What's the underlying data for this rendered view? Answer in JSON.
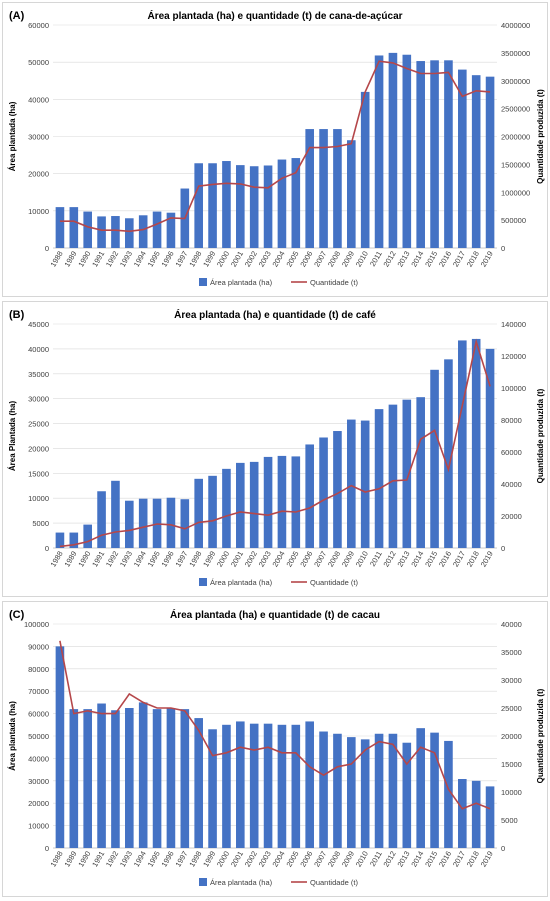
{
  "colors": {
    "bar": "#4472c4",
    "line": "#b5474a",
    "grid": "#d9d9d9",
    "axis": "#bfbfbf"
  },
  "chart_data": [
    {
      "type": "bar",
      "label": "(A)",
      "title": "Área plantada (ha) e quantidade (t) de cana-de-açúcar",
      "ylabel": "Área plantada (ha)",
      "y2label": "Quantidade produzida (t)",
      "ylim": [
        0,
        60000
      ],
      "yticks": [
        0,
        10000,
        20000,
        30000,
        40000,
        50000,
        60000
      ],
      "y2lim": [
        0,
        4000000
      ],
      "y2ticks": [
        0,
        500000,
        1000000,
        1500000,
        2000000,
        2500000,
        3000000,
        3500000,
        4000000
      ],
      "categories": [
        "1988",
        "1989",
        "1990",
        "1991",
        "1992",
        "1993",
        "1994",
        "1995",
        "1996",
        "1997",
        "1998",
        "1999",
        "2000",
        "2001",
        "2002",
        "2003",
        "2004",
        "2005",
        "2006",
        "2007",
        "2008",
        "2009",
        "2010",
        "2011",
        "2012",
        "2013",
        "2014",
        "2015",
        "2016",
        "2017",
        "2018",
        "2019"
      ],
      "series": [
        {
          "name": "Área plantada (ha)",
          "type": "bar",
          "axis": "left",
          "values": [
            11000,
            11000,
            9800,
            8500,
            8600,
            8000,
            8800,
            9800,
            9500,
            16000,
            22800,
            22800,
            23400,
            22300,
            22000,
            22200,
            23800,
            24200,
            32000,
            32000,
            32000,
            29000,
            42000,
            51800,
            52500,
            52000,
            50300,
            50500,
            50500,
            48000,
            46500,
            46100
          ]
        },
        {
          "name": "Quantidade (t)",
          "type": "line",
          "axis": "right",
          "values": [
            480000,
            480000,
            380000,
            320000,
            320000,
            300000,
            330000,
            430000,
            540000,
            530000,
            1110000,
            1140000,
            1160000,
            1150000,
            1090000,
            1080000,
            1250000,
            1350000,
            1800000,
            1800000,
            1820000,
            1870000,
            2800000,
            3350000,
            3320000,
            3220000,
            3130000,
            3130000,
            3150000,
            2720000,
            2820000,
            2800000
          ]
        }
      ]
    },
    {
      "type": "bar",
      "label": "(B)",
      "title": "Área plantada (ha) e quantidade (t) de café",
      "ylabel": "Área Plantada (ha)",
      "y2label": "Quantidade produzida (t)",
      "ylim": [
        0,
        45000
      ],
      "yticks": [
        0,
        5000,
        10000,
        15000,
        20000,
        25000,
        30000,
        35000,
        40000,
        45000
      ],
      "y2lim": [
        0,
        140000
      ],
      "y2ticks": [
        0,
        20000,
        40000,
        60000,
        80000,
        100000,
        120000,
        140000
      ],
      "categories": [
        "1988",
        "1989",
        "1990",
        "1991",
        "1992",
        "1993",
        "1994",
        "1995",
        "1996",
        "1997",
        "1998",
        "1999",
        "2000",
        "2001",
        "2002",
        "2003",
        "2004",
        "2005",
        "2006",
        "2007",
        "2008",
        "2009",
        "2010",
        "2011",
        "2012",
        "2013",
        "2014",
        "2015",
        "2016",
        "2017",
        "2018",
        "2019"
      ],
      "series": [
        {
          "name": "Área plantada (ha)",
          "type": "bar",
          "axis": "left",
          "values": [
            3100,
            3100,
            4700,
            11400,
            13500,
            9500,
            9900,
            9900,
            10100,
            9800,
            13900,
            14500,
            15900,
            17100,
            17300,
            18300,
            18500,
            18400,
            20800,
            22200,
            23500,
            25800,
            25600,
            27900,
            28800,
            29800,
            30300,
            35800,
            37900,
            41700,
            42000,
            40000
          ]
        },
        {
          "name": "Quantidade (t)",
          "type": "line",
          "axis": "right",
          "values": [
            1000,
            2000,
            4000,
            8000,
            10000,
            11000,
            13000,
            15000,
            14500,
            12000,
            16000,
            17000,
            20000,
            22500,
            21500,
            20500,
            23000,
            22500,
            25000,
            30000,
            34000,
            39000,
            35000,
            37000,
            42000,
            42500,
            68000,
            73500,
            49000,
            89000,
            129000,
            101000
          ]
        }
      ]
    },
    {
      "type": "bar",
      "label": "(C)",
      "title": "Área plantada (ha) e quantidade (t) de cacau",
      "ylabel": "Área plantada (ha)",
      "y2label": "Quantidade produzida (t)",
      "ylim": [
        0,
        100000
      ],
      "yticks": [
        0,
        10000,
        20000,
        30000,
        40000,
        50000,
        60000,
        70000,
        80000,
        90000,
        100000
      ],
      "y2lim": [
        0,
        40000
      ],
      "y2ticks": [
        0,
        5000,
        10000,
        15000,
        20000,
        25000,
        30000,
        35000,
        40000
      ],
      "categories": [
        "1988",
        "1989",
        "1990",
        "1991",
        "1992",
        "1993",
        "1994",
        "1995",
        "1996",
        "1997",
        "1998",
        "1999",
        "2000",
        "2001",
        "2002",
        "2003",
        "2004",
        "2005",
        "2006",
        "2007",
        "2008",
        "2009",
        "2010",
        "2011",
        "2012",
        "2013",
        "2014",
        "2015",
        "2016",
        "2017",
        "2018",
        "2019"
      ],
      "series": [
        {
          "name": "Área plantada (ha)",
          "type": "bar",
          "axis": "left",
          "values": [
            90000,
            62000,
            62000,
            64500,
            61500,
            62500,
            65000,
            62000,
            62500,
            62000,
            58000,
            53000,
            55000,
            56500,
            55500,
            55500,
            55000,
            55000,
            56500,
            52000,
            51000,
            49500,
            48500,
            51000,
            51000,
            47000,
            53500,
            51500,
            47800,
            30800,
            30000,
            27500
          ]
        },
        {
          "name": "Quantidade (t)",
          "type": "line",
          "axis": "right",
          "values": [
            37000,
            24000,
            24500,
            24000,
            24000,
            27500,
            26000,
            25000,
            25000,
            24500,
            21000,
            16500,
            17000,
            18000,
            17500,
            18000,
            17000,
            17000,
            14500,
            13000,
            14500,
            15000,
            17500,
            19000,
            18500,
            15000,
            18000,
            17000,
            10500,
            7000,
            8000,
            7000
          ]
        }
      ]
    }
  ]
}
